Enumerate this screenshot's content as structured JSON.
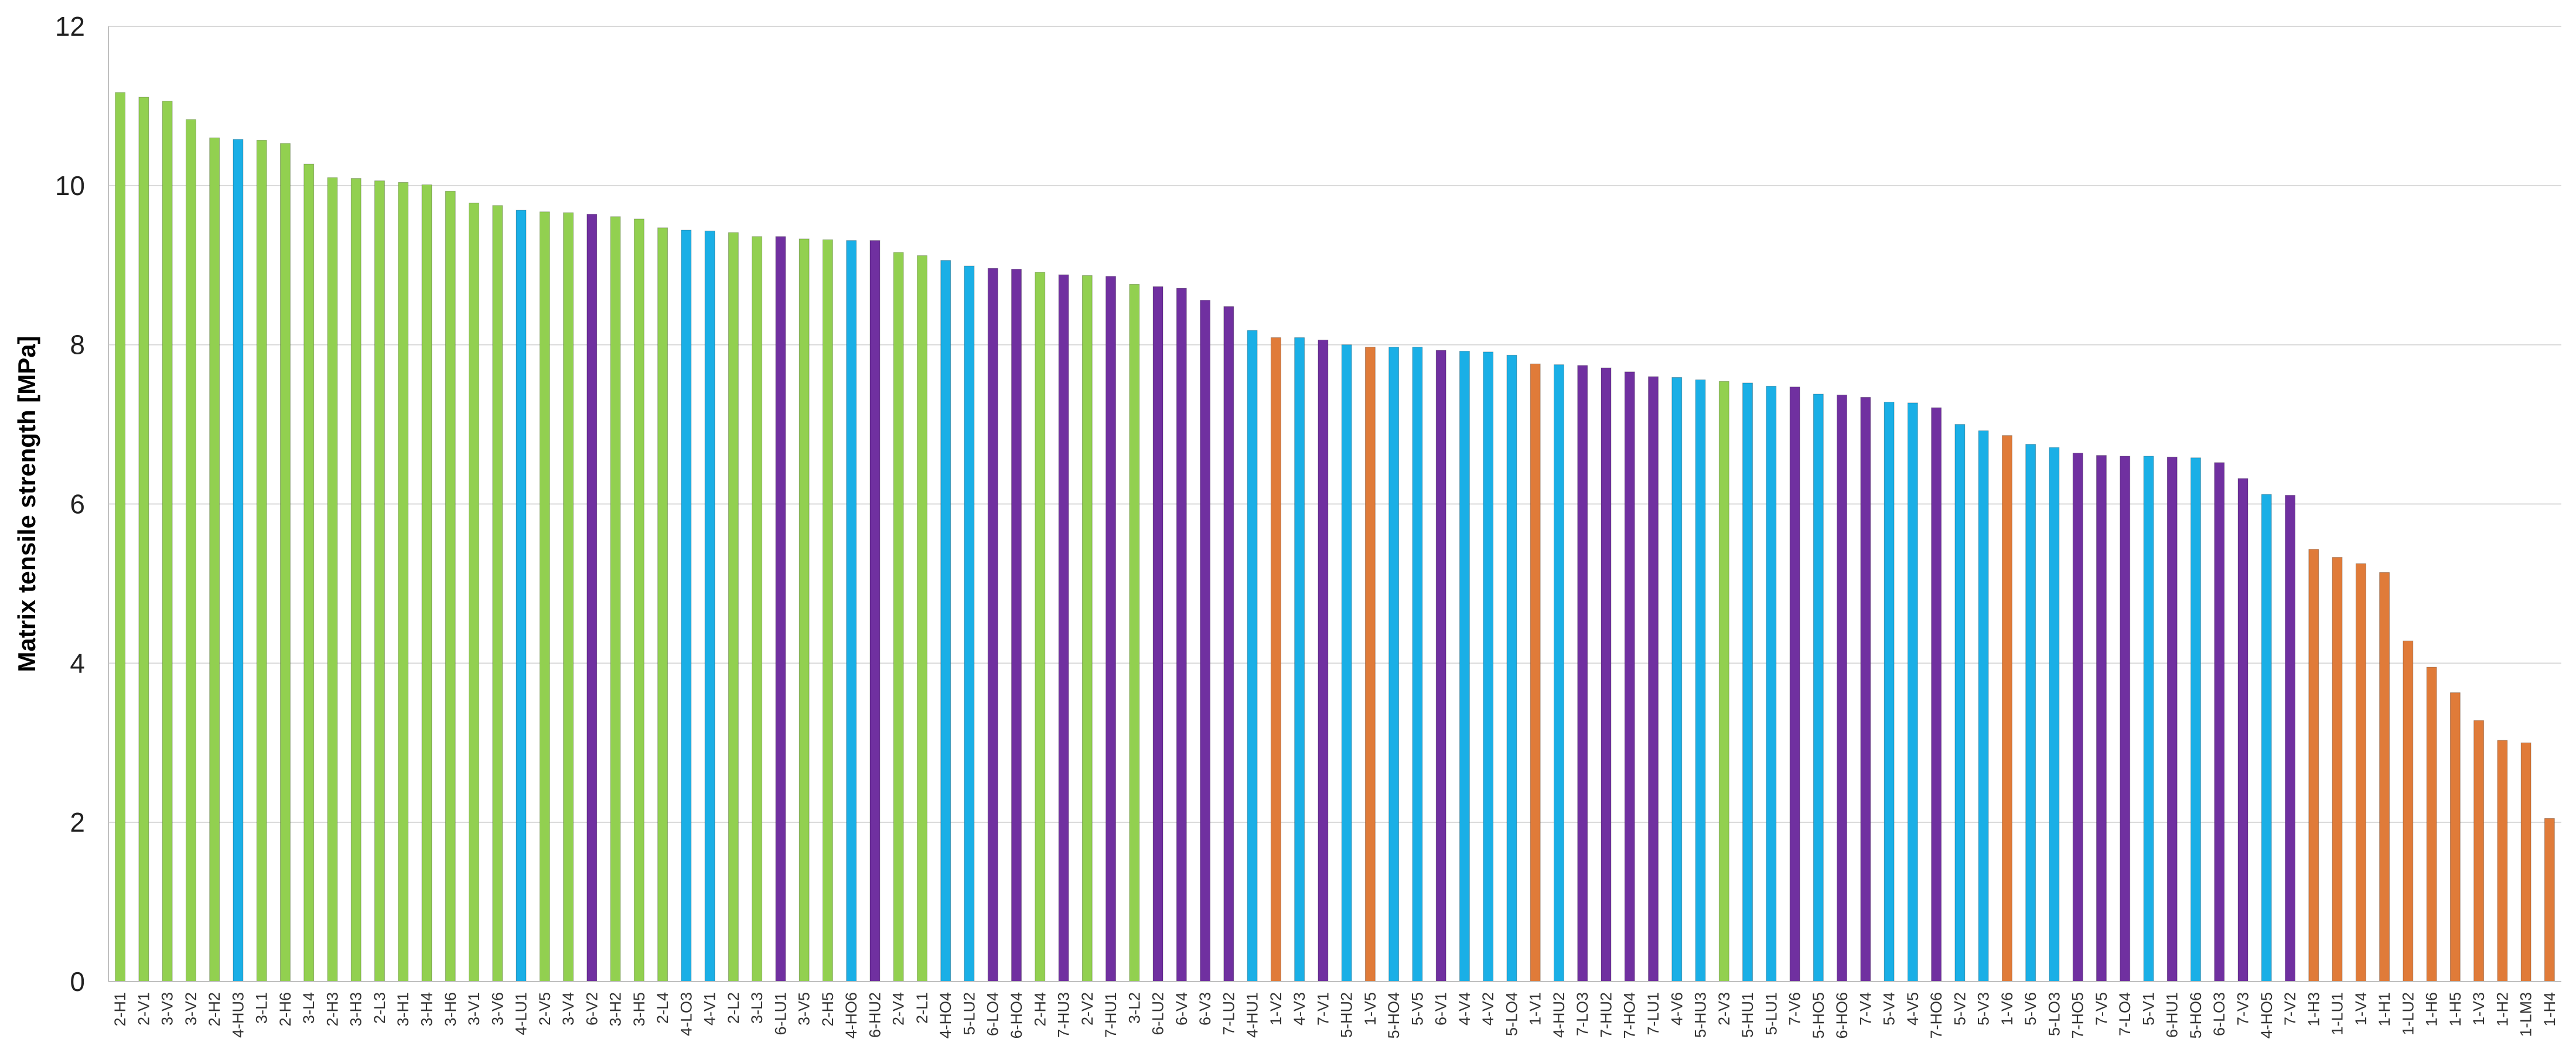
{
  "chart_data": {
    "type": "bar",
    "ylabel": "Matrix tensile strength [MPa]",
    "xlabel": "",
    "title": "",
    "ylim": [
      0,
      12
    ],
    "yticks": [
      0,
      2,
      4,
      6,
      8,
      10,
      12
    ],
    "grid": true,
    "legend": "none",
    "group_colors": {
      "1": "#E07B39",
      "2": "#92D050",
      "3": "#92D050",
      "4": "#1AAFE6",
      "5": "#1AAFE6",
      "6": "#7030A0",
      "7": "#7030A0"
    },
    "categories": [
      "2-H1",
      "2-V1",
      "3-V3",
      "3-V2",
      "2-H2",
      "4-HU3",
      "3-L1",
      "2-H6",
      "3-L4",
      "2-H3",
      "3-H3",
      "2-L3",
      "3-H1",
      "3-H4",
      "3-H6",
      "3-V1",
      "3-V6",
      "4-LU1",
      "2-V5",
      "3-V4",
      "6-V2",
      "3-H2",
      "3-H5",
      "2-L4",
      "4-LO3",
      "4-V1",
      "2-L2",
      "3-L3",
      "6-LU1",
      "3-V5",
      "2-H5",
      "4-HO6",
      "6-HU2",
      "2-V4",
      "2-L1",
      "4-HO4",
      "5-LU2",
      "6-LO4",
      "6-HO4",
      "2-H4",
      "7-HU3",
      "2-V2",
      "7-HU1",
      "3-L2",
      "6-LU2",
      "6-V4",
      "6-V3",
      "7-LU2",
      "4-HU1",
      "1-V2",
      "4-V3",
      "7-V1",
      "5-HU2",
      "1-V5",
      "5-HO4",
      "5-V5",
      "6-V1",
      "4-V4",
      "4-V2",
      "5-LO4",
      "1-V1",
      "4-HU2",
      "7-LO3",
      "7-HU2",
      "7-HO4",
      "7-LU1",
      "4-V6",
      "5-HU3",
      "2-V3",
      "5-HU1",
      "5-LU1",
      "7-V6",
      "5-HO5",
      "6-HO6",
      "7-V4",
      "5-V4",
      "4-V5",
      "7-HO6",
      "5-V2",
      "5-V3",
      "1-V6",
      "5-V6",
      "5-LO3",
      "7-HO5",
      "7-V5",
      "7-LO4",
      "5-V1",
      "6-HU1",
      "5-HO6",
      "6-LO3",
      "7-V3",
      "4-HO5",
      "7-V2",
      "1-H3",
      "1-LU1",
      "1-V4",
      "1-H1",
      "1-LU2",
      "1-H6",
      "1-H5",
      "1-V3",
      "1-H2",
      "1-LM3",
      "1-H4"
    ],
    "values": [
      11.17,
      11.11,
      11.06,
      10.83,
      10.6,
      10.58,
      10.57,
      10.53,
      10.27,
      10.1,
      10.09,
      10.06,
      10.04,
      10.01,
      9.93,
      9.78,
      9.75,
      9.69,
      9.67,
      9.66,
      9.64,
      9.61,
      9.58,
      9.47,
      9.44,
      9.43,
      9.41,
      9.36,
      9.36,
      9.33,
      9.32,
      9.31,
      9.31,
      9.16,
      9.12,
      9.06,
      8.99,
      8.96,
      8.95,
      8.91,
      8.88,
      8.87,
      8.86,
      8.76,
      8.73,
      8.71,
      8.56,
      8.48,
      8.18,
      8.09,
      8.09,
      8.06,
      8.0,
      7.97,
      7.97,
      7.97,
      7.93,
      7.92,
      7.91,
      7.87,
      7.76,
      7.75,
      7.74,
      7.71,
      7.66,
      7.6,
      7.59,
      7.56,
      7.54,
      7.52,
      7.48,
      7.47,
      7.38,
      7.37,
      7.34,
      7.28,
      7.27,
      7.21,
      7.0,
      6.92,
      6.86,
      6.75,
      6.71,
      6.64,
      6.61,
      6.6,
      6.6,
      6.59,
      6.58,
      6.52,
      6.32,
      6.12,
      6.11,
      5.43,
      5.33,
      5.25,
      5.14,
      4.28,
      3.95,
      3.63,
      3.28,
      3.03,
      3.0,
      2.05
    ]
  }
}
